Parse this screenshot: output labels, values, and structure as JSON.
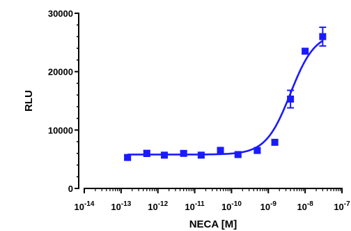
{
  "chart_data": {
    "type": "scatter",
    "xlabel": "NECA [M]",
    "ylabel": "RLU",
    "x_scale": "log",
    "xlim": [
      1e-14,
      1e-07
    ],
    "ylim": [
      0,
      30000
    ],
    "x_ticks": [
      {
        "base": "10",
        "exp": "-14"
      },
      {
        "base": "10",
        "exp": "-13"
      },
      {
        "base": "10",
        "exp": "-12"
      },
      {
        "base": "10",
        "exp": "-11"
      },
      {
        "base": "10",
        "exp": "-10"
      },
      {
        "base": "10",
        "exp": "-9"
      },
      {
        "base": "10",
        "exp": "-8"
      },
      {
        "base": "10",
        "exp": "-7"
      }
    ],
    "y_ticks": [
      "0",
      "10000",
      "20000",
      "30000"
    ],
    "grid": false,
    "color": "#1a1aff",
    "series": [
      {
        "x": [
          1.5e-13,
          5e-13,
          1.5e-12,
          5e-12,
          1.5e-11,
          5e-11,
          1.5e-10,
          5e-10,
          1.5e-09,
          4e-09,
          1e-08,
          3e-08
        ],
        "y": [
          5300,
          6000,
          5700,
          6000,
          5700,
          6500,
          5800,
          6500,
          7900,
          15300,
          23500,
          26000
        ],
        "error": [
          300,
          500,
          250,
          400,
          300,
          500,
          300,
          300,
          400,
          1500,
          400,
          1600
        ]
      }
    ],
    "fit": {
      "type": "sigmoid",
      "bottom": 5800,
      "top": 26700,
      "log_ec50": -8.4,
      "hill": 1.3,
      "x_from": 1.5e-13,
      "x_to": 3e-08
    }
  }
}
